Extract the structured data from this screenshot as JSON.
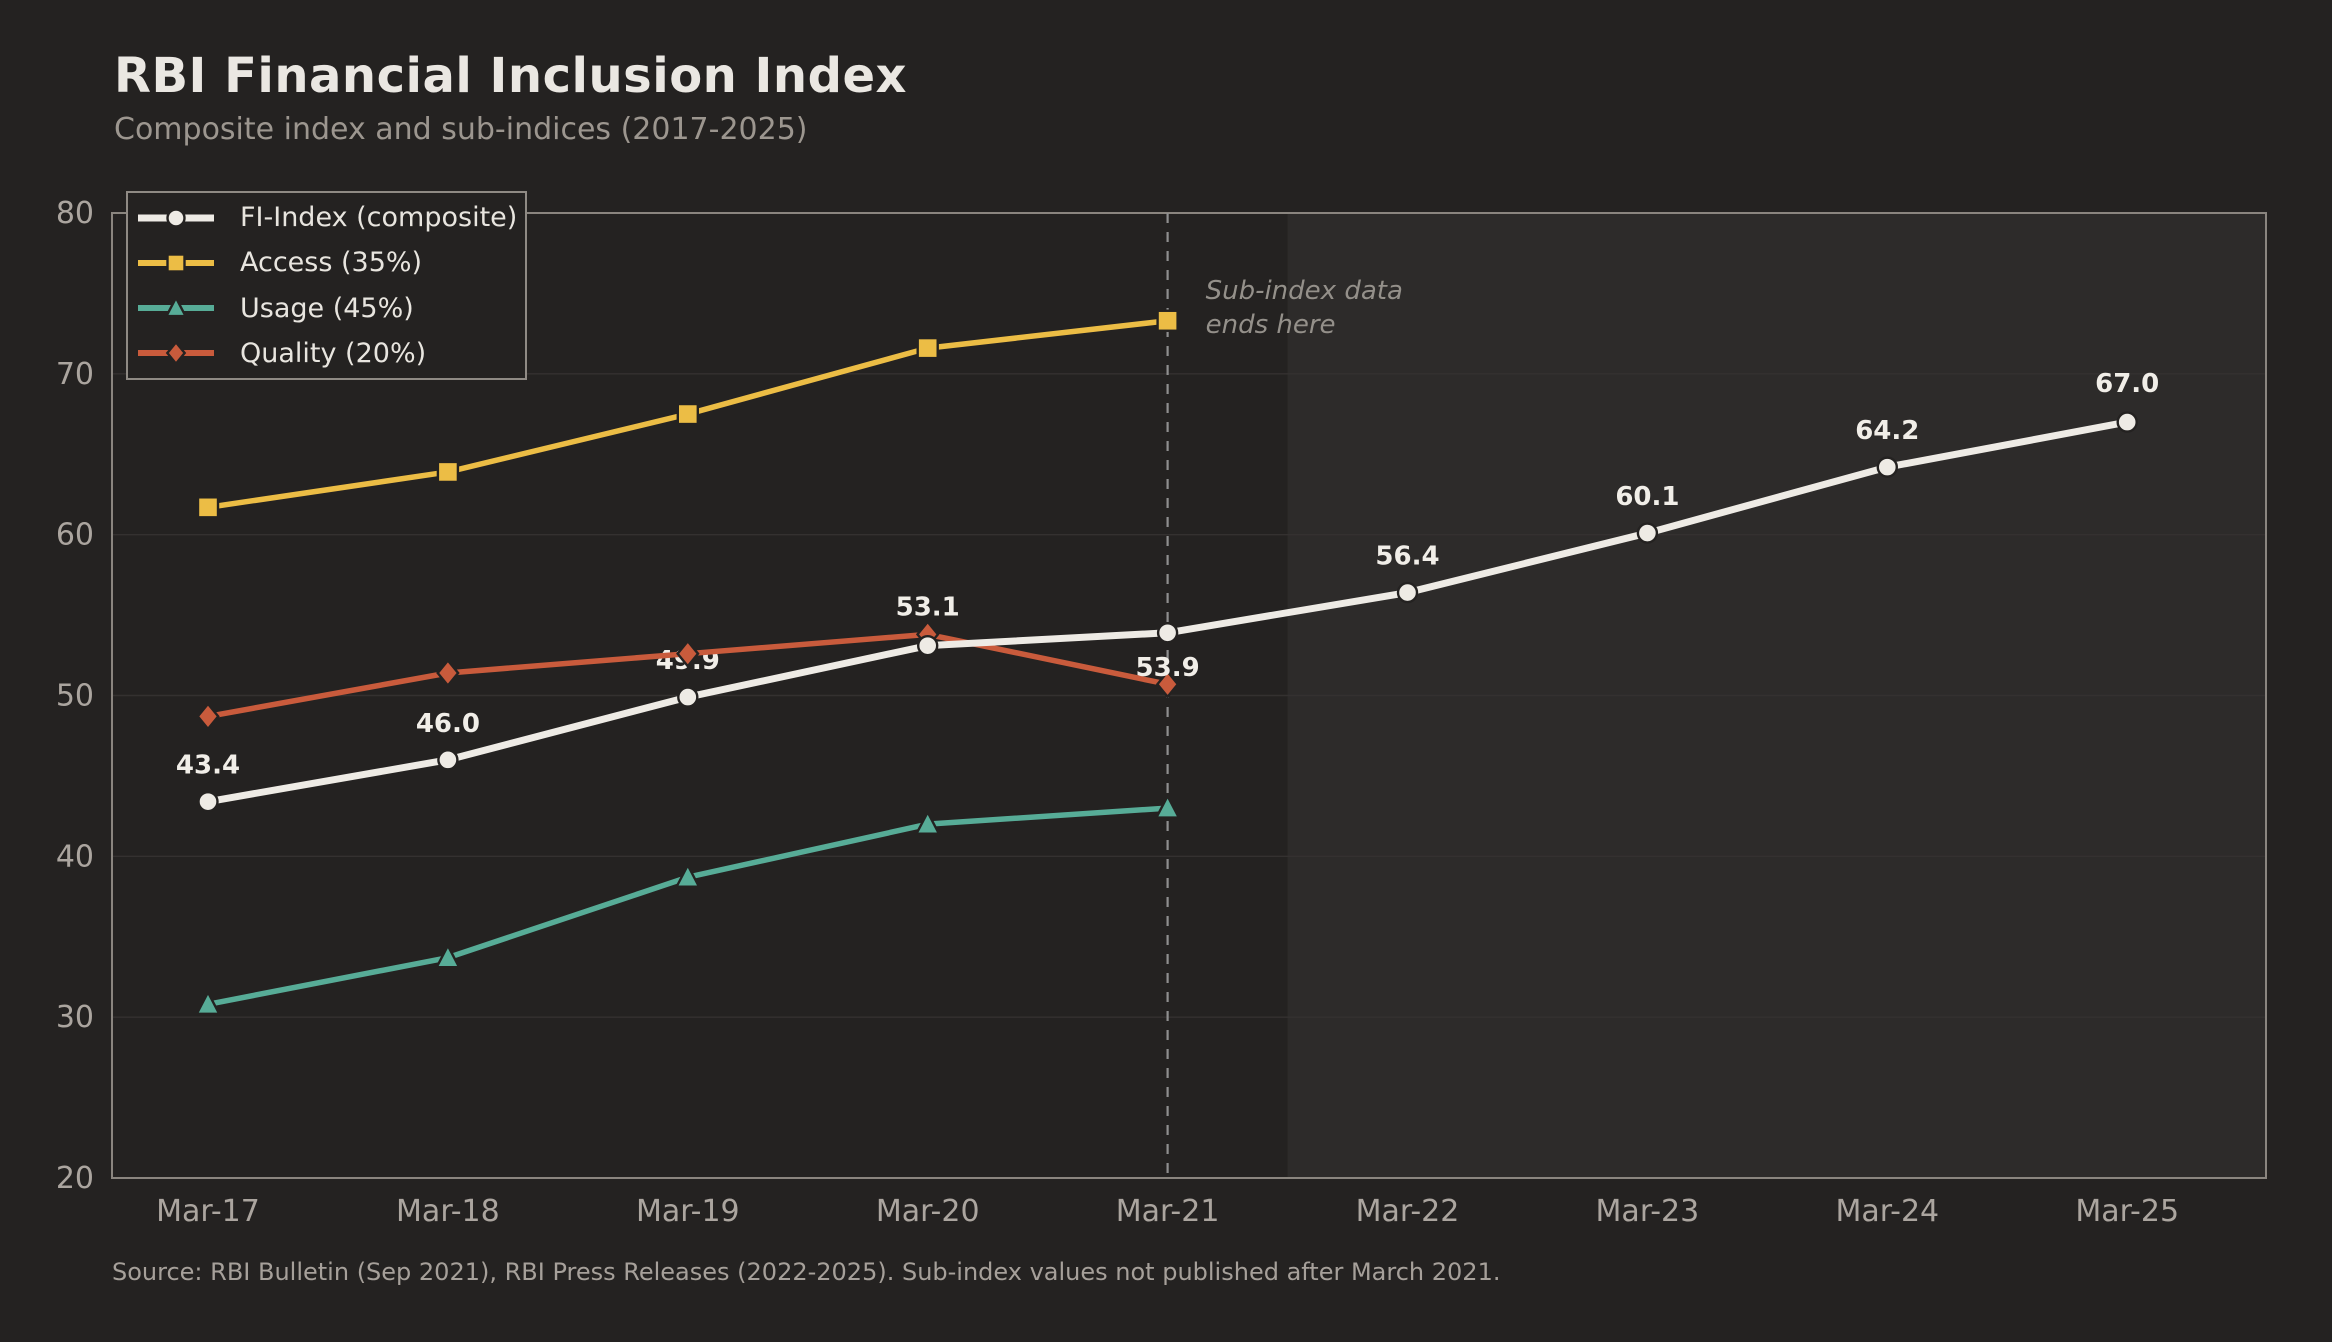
{
  "header": {
    "title": "RBI Financial Inclusion Index",
    "subtitle": "Composite index and sub-indices (2017-2025)"
  },
  "footer": {
    "source": "Source: RBI Bulletin (Sep 2021), RBI Press Releases (2022-2025). Sub-index values not published after March 2021."
  },
  "palette": {
    "background": "#242221",
    "shaded_region": "rgba(255,255,255,0.045)",
    "gridline": "#343130",
    "spine": "#8a857f",
    "tick_label": "#aba59f",
    "vline": "#8f8f8f",
    "annotation_text": "#94908a",
    "point_label": "#f1eee8",
    "marker_edge": "#242221"
  },
  "chart_data": {
    "type": "line",
    "title": "RBI Financial Inclusion Index",
    "subtitle": "Composite index and sub-indices (2017-2025)",
    "categories": [
      "Mar-17",
      "Mar-18",
      "Mar-19",
      "Mar-20",
      "Mar-21",
      "Mar-22",
      "Mar-23",
      "Mar-24",
      "Mar-25"
    ],
    "ylim": [
      20,
      80
    ],
    "yticks": [
      20,
      30,
      40,
      50,
      60,
      70,
      80
    ],
    "grid": "horizontal",
    "legend_position": "upper-left",
    "series": [
      {
        "name": "FI-Index (composite)",
        "color": "#eeebe5",
        "marker": "circle",
        "front": true,
        "values": [
          43.4,
          46.0,
          49.9,
          53.1,
          53.9,
          56.4,
          60.1,
          64.2,
          67.0
        ],
        "point_labels": [
          {
            "text": "43.4",
            "dy": -28
          },
          {
            "text": "46.0",
            "dy": -28
          },
          {
            "text": "49.9",
            "dy": -28,
            "under": true
          },
          {
            "text": "53.1",
            "dy": -30
          },
          {
            "text": "53.9",
            "dy": 43
          },
          {
            "text": "56.4",
            "dy": -28
          },
          {
            "text": "60.1",
            "dy": -28
          },
          {
            "text": "64.2",
            "dy": -28
          },
          {
            "text": "67.0",
            "dy": -30
          }
        ]
      },
      {
        "name": "Access (35%)",
        "color": "#ecbd45",
        "marker": "square",
        "values": [
          61.7,
          63.9,
          67.5,
          71.6,
          73.3,
          null,
          null,
          null,
          null
        ]
      },
      {
        "name": "Usage (45%)",
        "color": "#57ac97",
        "marker": "triangle",
        "values": [
          30.8,
          33.7,
          38.7,
          42.0,
          43.0,
          null,
          null,
          null,
          null
        ]
      },
      {
        "name": "Quality (20%)",
        "color": "#c95b3c",
        "marker": "diamond",
        "values": [
          48.7,
          51.4,
          52.6,
          53.8,
          50.7,
          null,
          null,
          null,
          null
        ]
      }
    ],
    "annotations": {
      "vline_at_category": "Mar-21",
      "vline_label_lines": [
        "Sub-index data",
        "ends here"
      ],
      "shaded_region_after_category": "Mar-21"
    }
  }
}
